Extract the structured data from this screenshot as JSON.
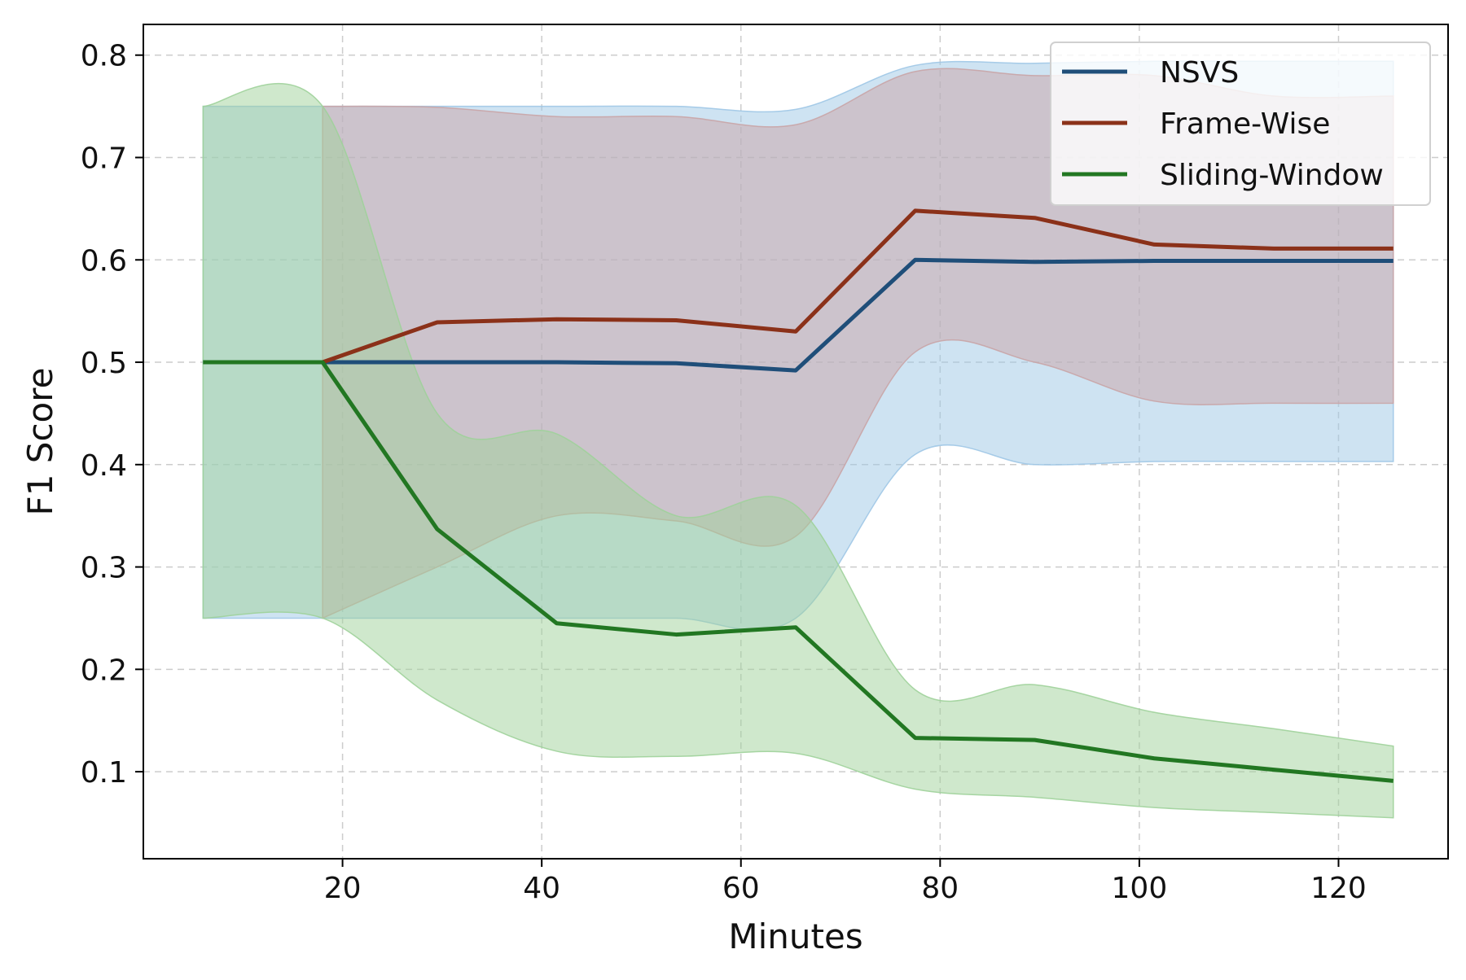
{
  "chart_data": {
    "type": "line",
    "title": "",
    "xlabel": "Minutes",
    "ylabel": "F1 Score",
    "xlim": [
      0,
      131
    ],
    "ylim": [
      0.015,
      0.83
    ],
    "xticks": [
      20,
      40,
      60,
      80,
      100,
      120
    ],
    "yticks": [
      0.1,
      0.2,
      0.3,
      0.4,
      0.5,
      0.6,
      0.7,
      0.8
    ],
    "grid": true,
    "legend_position": "top-right",
    "series": [
      {
        "name": "NSVS",
        "color": "#1f4e79",
        "band_color": "#9ec7e6",
        "x": [
          6,
          18,
          29.5,
          41.5,
          53.5,
          65.5,
          77.5,
          89.5,
          101.5,
          113.5,
          125.5
        ],
        "values": [
          0.5,
          0.5,
          0.5,
          0.5,
          0.499,
          0.492,
          0.6,
          0.598,
          0.599,
          0.599,
          0.599
        ],
        "upper": [
          0.75,
          0.75,
          0.75,
          0.75,
          0.75,
          0.747,
          0.79,
          0.792,
          0.794,
          0.794,
          0.794
        ],
        "lower": [
          0.25,
          0.25,
          0.25,
          0.25,
          0.25,
          0.25,
          0.41,
          0.4,
          0.403,
          0.403,
          0.403
        ]
      },
      {
        "name": "Frame-Wise",
        "color": "#8b3119",
        "band_color": "#c9a4a6",
        "x": [
          18,
          29.5,
          41.5,
          53.5,
          65.5,
          77.5,
          89.5,
          101.5,
          113.5,
          125.5
        ],
        "values": [
          0.5,
          0.539,
          0.542,
          0.541,
          0.53,
          0.648,
          0.641,
          0.615,
          0.611,
          0.611
        ],
        "upper": [
          0.75,
          0.749,
          0.74,
          0.74,
          0.732,
          0.784,
          0.78,
          0.78,
          0.76,
          0.76
        ],
        "lower": [
          0.25,
          0.3,
          0.35,
          0.345,
          0.33,
          0.51,
          0.5,
          0.462,
          0.46,
          0.46
        ]
      },
      {
        "name": "Sliding-Window",
        "color": "#227722",
        "band_color": "#9fd19a",
        "x": [
          6,
          18,
          29.5,
          41.5,
          53.5,
          65.5,
          77.5,
          89.5,
          101.5,
          113.5,
          125.5
        ],
        "values": [
          0.5,
          0.5,
          0.337,
          0.245,
          0.234,
          0.241,
          0.133,
          0.131,
          0.113,
          0.102,
          0.091
        ],
        "upper": [
          0.75,
          0.75,
          0.45,
          0.43,
          0.35,
          0.36,
          0.18,
          0.185,
          0.158,
          0.142,
          0.125
        ],
        "lower": [
          0.25,
          0.25,
          0.17,
          0.12,
          0.115,
          0.118,
          0.083,
          0.075,
          0.065,
          0.06,
          0.055
        ]
      }
    ]
  }
}
